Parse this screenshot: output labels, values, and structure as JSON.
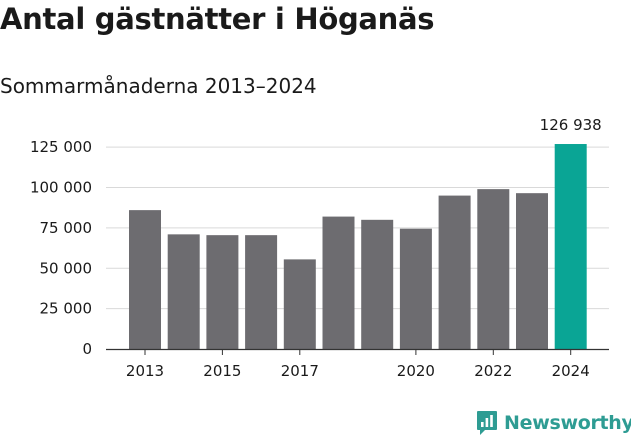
{
  "header": {
    "title": "Antal gästnätter i Höganäs",
    "subtitle": "Sommarmånaderna 2013–2024"
  },
  "footer": {
    "logo_text": "Newsworthy"
  },
  "colors": {
    "bar": "#6d6c70",
    "highlight": "#0aa595",
    "grid": "#d9d9d9",
    "text": "#1a1a1a"
  },
  "chart_data": {
    "type": "bar",
    "categories": [
      "2013",
      "2014",
      "2015",
      "2016",
      "2017",
      "2018",
      "2019",
      "2020",
      "2021",
      "2022",
      "2023",
      "2024"
    ],
    "values": [
      86000,
      71000,
      70500,
      70500,
      55500,
      82000,
      80000,
      74500,
      95000,
      99000,
      96500,
      126938
    ],
    "ylim": [
      0,
      135000
    ],
    "yticks": [
      0,
      25000,
      50000,
      75000,
      100000,
      125000
    ],
    "ytick_labels": [
      "0",
      "25 000",
      "50 000",
      "75 000",
      "100 000",
      "125 000"
    ],
    "xtick_labels": [
      "2013",
      "2015",
      "2017",
      "2020",
      "2022",
      "2024"
    ],
    "xtick_categories": [
      "2013",
      "2015",
      "2017",
      "2020",
      "2022",
      "2024"
    ],
    "highlight_category": "2024",
    "highlight_label": "126 938",
    "grid": true,
    "xlabel": "",
    "ylabel": ""
  }
}
